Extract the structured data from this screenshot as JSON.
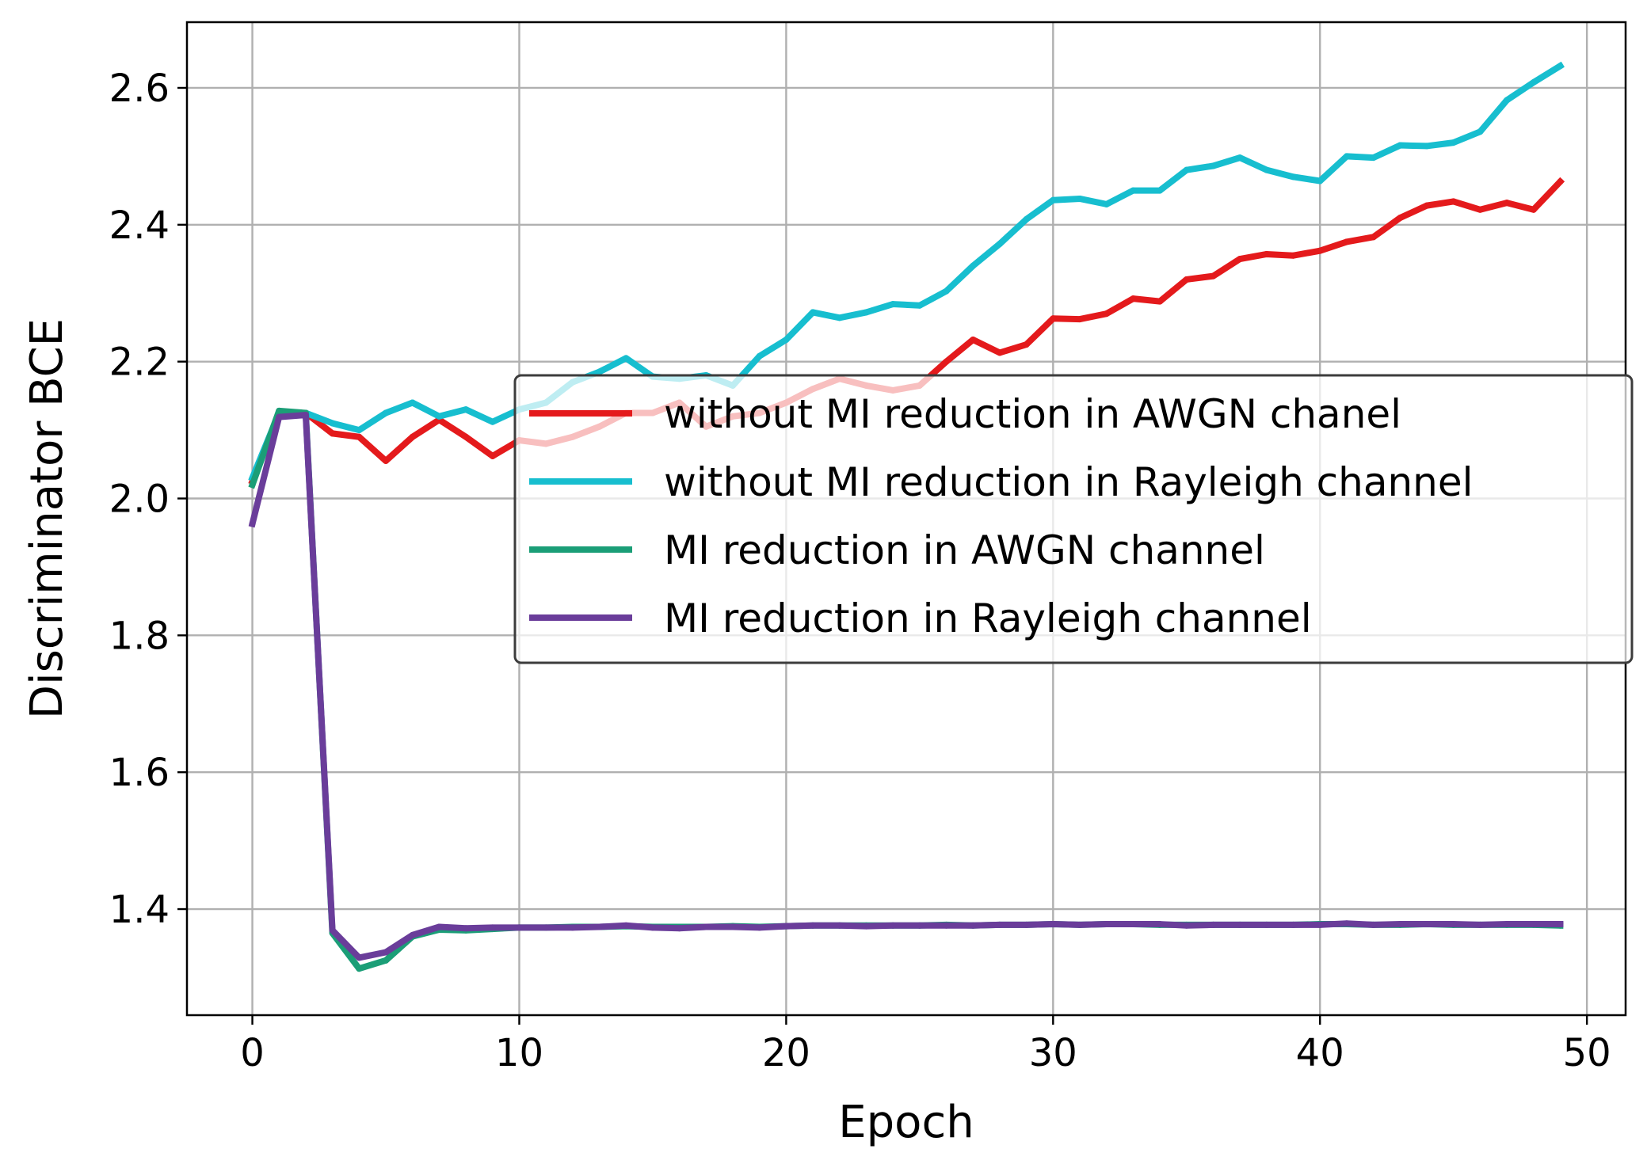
{
  "chart_data": {
    "type": "line",
    "title": "",
    "xlabel": "Epoch",
    "ylabel": "Discriminator BCE",
    "xlim": [
      -2.45,
      51.45
    ],
    "ylim": [
      1.245,
      2.696
    ],
    "xticks": [
      0,
      10,
      20,
      30,
      40,
      50
    ],
    "xtick_labels": [
      "0",
      "10",
      "20",
      "30",
      "40",
      "50"
    ],
    "yticks": [
      1.4,
      1.6,
      1.8,
      2.0,
      2.2,
      2.4,
      2.6
    ],
    "ytick_labels": [
      "1.4",
      "1.6",
      "1.8",
      "2.0",
      "2.2",
      "2.4",
      "2.6"
    ],
    "grid": true,
    "legend_position": "center-right",
    "x": [
      0,
      1,
      2,
      3,
      4,
      5,
      6,
      7,
      8,
      9,
      10,
      11,
      12,
      13,
      14,
      15,
      16,
      17,
      18,
      19,
      20,
      21,
      22,
      23,
      24,
      25,
      26,
      27,
      28,
      29,
      30,
      31,
      32,
      33,
      34,
      35,
      36,
      37,
      38,
      39,
      40,
      41,
      42,
      43,
      44,
      45,
      46,
      47,
      48,
      49
    ],
    "series": [
      {
        "name": "without MI reduction in AWGN chanel",
        "color": "#e41a1c",
        "values": [
          2.025,
          2.125,
          2.125,
          2.095,
          2.09,
          2.055,
          2.09,
          2.115,
          2.09,
          2.062,
          2.085,
          2.08,
          2.09,
          2.105,
          2.125,
          2.125,
          2.14,
          2.105,
          2.12,
          2.125,
          2.14,
          2.16,
          2.175,
          2.165,
          2.158,
          2.165,
          2.2,
          2.232,
          2.213,
          2.225,
          2.263,
          2.262,
          2.27,
          2.292,
          2.288,
          2.32,
          2.325,
          2.35,
          2.357,
          2.355,
          2.362,
          2.375,
          2.382,
          2.41,
          2.428,
          2.434,
          2.422,
          2.432,
          2.422,
          2.463
        ]
      },
      {
        "name": "without MI reduction in Rayleigh channel",
        "color": "#17becf",
        "values": [
          2.03,
          2.125,
          2.125,
          2.11,
          2.1,
          2.125,
          2.14,
          2.12,
          2.13,
          2.112,
          2.13,
          2.14,
          2.17,
          2.185,
          2.205,
          2.178,
          2.175,
          2.18,
          2.165,
          2.208,
          2.232,
          2.272,
          2.264,
          2.272,
          2.284,
          2.282,
          2.303,
          2.34,
          2.372,
          2.408,
          2.436,
          2.438,
          2.43,
          2.45,
          2.45,
          2.48,
          2.486,
          2.498,
          2.48,
          2.47,
          2.464,
          2.5,
          2.498,
          2.516,
          2.515,
          2.52,
          2.536,
          2.582,
          2.608,
          2.632
        ]
      },
      {
        "name": "MI reduction in AWGN channel",
        "color": "#1b9e77",
        "values": [
          2.02,
          2.128,
          2.125,
          1.365,
          1.313,
          1.325,
          1.36,
          1.37,
          1.369,
          1.371,
          1.373,
          1.373,
          1.374,
          1.374,
          1.375,
          1.374,
          1.374,
          1.374,
          1.375,
          1.374,
          1.375,
          1.376,
          1.376,
          1.376,
          1.376,
          1.376,
          1.377,
          1.376,
          1.377,
          1.377,
          1.378,
          1.377,
          1.378,
          1.378,
          1.377,
          1.377,
          1.377,
          1.377,
          1.377,
          1.377,
          1.378,
          1.378,
          1.377,
          1.377,
          1.378,
          1.377,
          1.377,
          1.377,
          1.377,
          1.376
        ]
      },
      {
        "name": "MI reduction in Rayleigh channel",
        "color": "#6a3d9a",
        "values": [
          1.963,
          2.119,
          2.122,
          1.369,
          1.329,
          1.337,
          1.362,
          1.374,
          1.372,
          1.373,
          1.373,
          1.373,
          1.373,
          1.374,
          1.376,
          1.373,
          1.372,
          1.374,
          1.374,
          1.373,
          1.375,
          1.376,
          1.376,
          1.375,
          1.376,
          1.376,
          1.376,
          1.376,
          1.377,
          1.377,
          1.378,
          1.377,
          1.378,
          1.378,
          1.378,
          1.376,
          1.377,
          1.377,
          1.377,
          1.377,
          1.377,
          1.379,
          1.377,
          1.378,
          1.378,
          1.378,
          1.377,
          1.378,
          1.378,
          1.378
        ]
      }
    ]
  }
}
